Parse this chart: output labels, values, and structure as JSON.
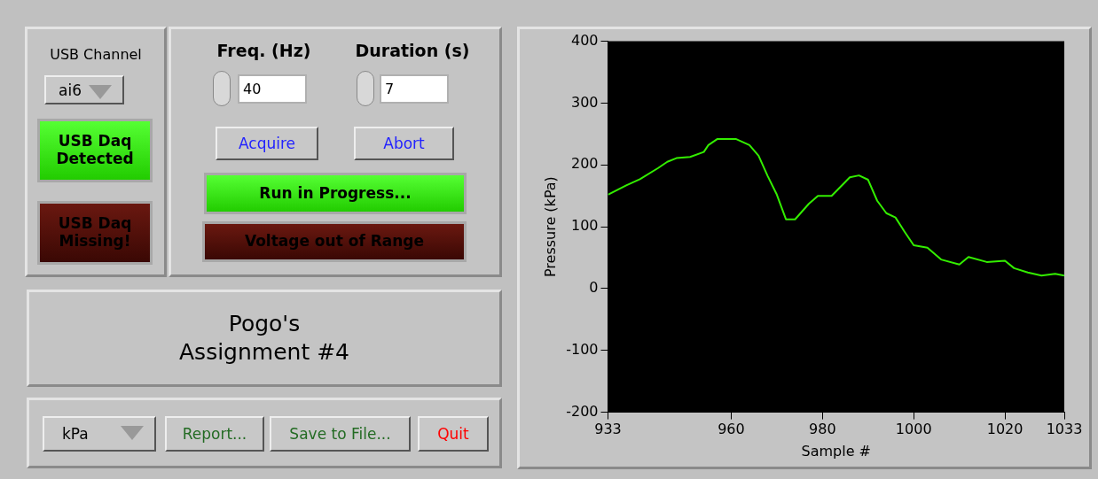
{
  "chart_data": [
    {
      "type": "other",
      "title": "Pogo's Assignment #4",
      "annotations": [
        "USB Channel",
        "ai6",
        "USB Daq Detected",
        "USB Daq Missing!",
        "Freq. (Hz)",
        "40",
        "Duration (s)",
        "7",
        "Acquire",
        "Abort",
        "Run in Progress...",
        "Voltage out of Range",
        "kPa",
        "Report...",
        "Save to File...",
        "Quit"
      ]
    },
    {
      "type": "line",
      "xlabel": "Sample #",
      "ylabel": "Pressure (kPa)",
      "xlim": [
        933,
        1033
      ],
      "xticks": [
        933,
        960,
        980,
        1000,
        1020,
        1033
      ],
      "ylim": [
        -200,
        400
      ],
      "yticks": [
        -200,
        -100,
        0,
        100,
        200,
        300,
        400
      ],
      "grid": false,
      "legend": false,
      "marker": "none",
      "line_style": "solid",
      "series": [
        {
          "color": "#33ee00",
          "x": [
            933,
            937,
            940,
            944,
            946,
            948,
            951,
            954,
            955,
            957,
            961,
            964,
            966,
            968,
            970,
            972,
            974,
            977,
            979,
            982,
            986,
            988,
            990,
            992,
            994,
            996,
            998,
            1000,
            1003,
            1006,
            1010,
            1012,
            1016,
            1020,
            1022,
            1025,
            1028,
            1031,
            1033
          ],
          "values": [
            152,
            167,
            177,
            195,
            205,
            211,
            213,
            221,
            232,
            242,
            242,
            232,
            215,
            182,
            152,
            112,
            112,
            137,
            150,
            150,
            180,
            183,
            176,
            142,
            122,
            115,
            92,
            70,
            66,
            47,
            39,
            51,
            43,
            45,
            33,
            26,
            21,
            24,
            21
          ]
        }
      ]
    }
  ]
}
